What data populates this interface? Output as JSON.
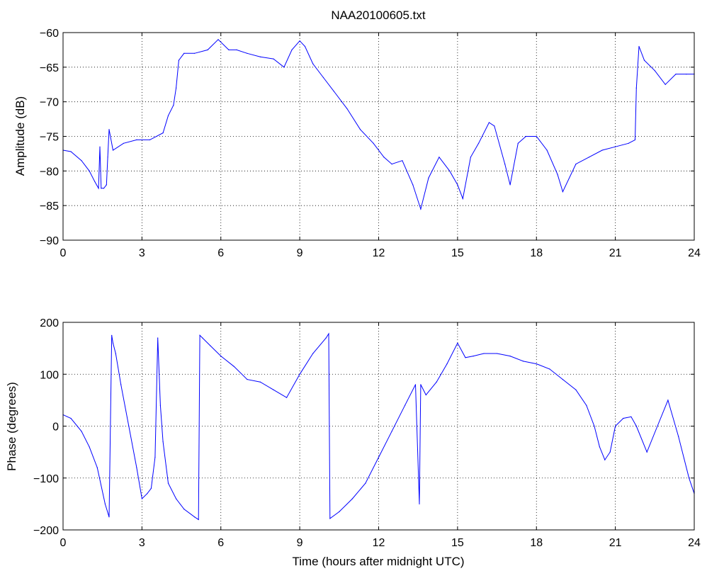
{
  "title": "NAA20100605.txt",
  "colors": {
    "trace": "#0000ff",
    "axes": "#000000",
    "background": "#ffffff"
  },
  "chart_data": [
    {
      "type": "line",
      "title": "NAA20100605.txt",
      "xlabel": "",
      "ylabel": "Amplitude (dB)",
      "xlim": [
        0,
        24
      ],
      "ylim": [
        -90,
        -60
      ],
      "xticks": [
        0,
        3,
        6,
        9,
        12,
        15,
        18,
        21,
        24
      ],
      "yticks": [
        -90,
        -85,
        -80,
        -75,
        -70,
        -65,
        -60
      ],
      "grid": true,
      "series": [
        {
          "x": [
            0,
            0.3,
            0.7,
            1.0,
            1.2,
            1.35,
            1.4,
            1.45,
            1.55,
            1.65,
            1.7,
            1.75,
            1.9,
            2.3,
            2.8,
            3.3,
            3.8,
            4.0,
            4.2,
            4.3,
            4.4,
            4.6,
            5.0,
            5.5,
            5.9,
            6.3,
            6.6,
            7.0,
            7.5,
            8.0,
            8.4,
            8.7,
            9.0,
            9.2,
            9.5,
            9.9,
            10.3,
            10.8,
            11.3,
            11.8,
            12.2,
            12.5,
            12.9,
            13.3,
            13.6,
            13.9,
            14.3,
            14.7,
            15.0,
            15.2,
            15.5,
            15.8,
            16.2,
            16.4,
            16.8,
            17.0,
            17.3,
            17.6,
            18.0,
            18.4,
            18.8,
            19.0,
            19.5,
            20.0,
            20.5,
            21.0,
            21.5,
            21.75,
            21.8,
            21.9,
            22.1,
            22.5,
            22.9,
            23.3,
            23.7,
            24.0
          ],
          "y": [
            -77,
            -77.2,
            -78.5,
            -80,
            -81.5,
            -82.5,
            -76.5,
            -82.5,
            -82.5,
            -82,
            -78,
            -74,
            -77,
            -76,
            -75.5,
            -75.5,
            -74.5,
            -72,
            -70.5,
            -68,
            -64,
            -63,
            -63,
            -62.5,
            -61,
            -62.5,
            -62.5,
            -63,
            -63.5,
            -63.8,
            -65,
            -62.5,
            -61.2,
            -62,
            -64.5,
            -66.5,
            -68.5,
            -71,
            -74,
            -76,
            -78,
            -79,
            -78.5,
            -82,
            -85.5,
            -81,
            -78,
            -80,
            -82,
            -84,
            -78,
            -76,
            -73,
            -73.5,
            -79,
            -82,
            -76,
            -75,
            -75,
            -77,
            -80.5,
            -83,
            -79,
            -78,
            -77,
            -76.5,
            -76,
            -75.5,
            -68,
            -62,
            -64,
            -65.5,
            -67.5,
            -66,
            -66,
            -66
          ]
        }
      ]
    },
    {
      "type": "line",
      "title": "",
      "xlabel": "Time (hours after midnight UTC)",
      "ylabel": "Phase (degrees)",
      "xlim": [
        0,
        24
      ],
      "ylim": [
        -200,
        200
      ],
      "xticks": [
        0,
        3,
        6,
        9,
        12,
        15,
        18,
        21,
        24
      ],
      "yticks": [
        -200,
        -100,
        0,
        100,
        200
      ],
      "grid": true,
      "series": [
        {
          "x": [
            0,
            0.3,
            0.7,
            1.0,
            1.3,
            1.6,
            1.75,
            1.85,
            1.9,
            2.0,
            2.2,
            2.5,
            2.8,
            3.0,
            3.2,
            3.35,
            3.5,
            3.6,
            3.7,
            3.8,
            4.0,
            4.3,
            4.6,
            5.0,
            5.15,
            5.2,
            5.3,
            5.6,
            6.0,
            6.5,
            7.0,
            7.5,
            8.0,
            8.5,
            9.0,
            9.5,
            10.0,
            10.1,
            10.15,
            10.5,
            11.0,
            11.5,
            12.0,
            12.5,
            13.0,
            13.4,
            13.55,
            13.6,
            13.8,
            14.2,
            14.6,
            15.0,
            15.3,
            15.6,
            16.0,
            16.5,
            17.0,
            17.5,
            18.0,
            18.5,
            19.0,
            19.5,
            19.9,
            20.2,
            20.4,
            20.6,
            20.8,
            21.0,
            21.3,
            21.6,
            21.8,
            22.2,
            22.6,
            23.0,
            23.4,
            23.8,
            24.0
          ],
          "y": [
            22,
            15,
            -10,
            -40,
            -80,
            -150,
            -175,
            175,
            160,
            140,
            80,
            0,
            -80,
            -140,
            -130,
            -120,
            -60,
            170,
            40,
            -30,
            -110,
            -140,
            -160,
            -175,
            -180,
            175,
            170,
            155,
            135,
            115,
            90,
            85,
            70,
            55,
            100,
            140,
            170,
            178,
            -178,
            -165,
            -140,
            -110,
            -60,
            -10,
            40,
            80,
            -150,
            80,
            60,
            85,
            120,
            160,
            132,
            135,
            140,
            140,
            135,
            125,
            120,
            110,
            90,
            70,
            40,
            0,
            -40,
            -65,
            -50,
            0,
            15,
            18,
            0,
            -50,
            0,
            50,
            -20,
            -100,
            -130
          ]
        }
      ]
    }
  ]
}
